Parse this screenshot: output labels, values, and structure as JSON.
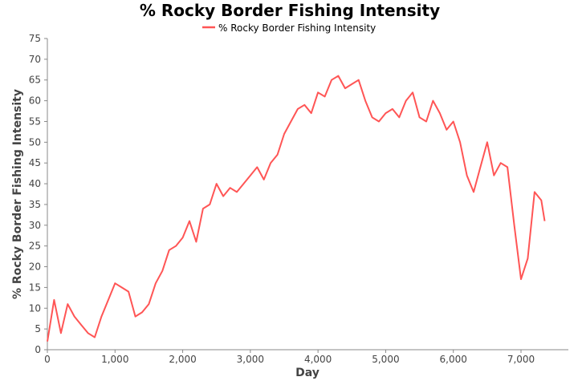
{
  "chart_data": {
    "type": "line",
    "title": "% Rocky Border Fishing Intensity",
    "xlabel": "Day",
    "ylabel": "% Rocky Border Fishing Intensity",
    "xlim": [
      0,
      7700
    ],
    "ylim": [
      0,
      75
    ],
    "x_ticks": [
      0,
      1000,
      2000,
      3000,
      4000,
      5000,
      6000,
      7000
    ],
    "x_tick_labels": [
      "0",
      "1,000",
      "2,000",
      "3,000",
      "4,000",
      "5,000",
      "6,000",
      "7,000"
    ],
    "y_ticks": [
      0,
      5,
      10,
      15,
      20,
      25,
      30,
      35,
      40,
      45,
      50,
      55,
      60,
      65,
      70,
      75
    ],
    "y_tick_labels": [
      "0",
      "5",
      "10",
      "15",
      "20",
      "25",
      "30",
      "35",
      "40",
      "45",
      "50",
      "55",
      "60",
      "65",
      "70",
      "75"
    ],
    "legend_position": "top-center",
    "grid": false,
    "series": [
      {
        "name": "% Rocky Border Fishing Intensity",
        "color": "#ff5555",
        "x": [
          0,
          100,
          200,
          300,
          400,
          500,
          600,
          700,
          800,
          900,
          1000,
          1100,
          1200,
          1300,
          1400,
          1500,
          1600,
          1700,
          1800,
          1900,
          2000,
          2100,
          2200,
          2300,
          2400,
          2500,
          2600,
          2700,
          2800,
          2900,
          3000,
          3100,
          3200,
          3300,
          3400,
          3500,
          3600,
          3700,
          3800,
          3900,
          4000,
          4100,
          4200,
          4300,
          4400,
          4500,
          4600,
          4700,
          4800,
          4900,
          5000,
          5100,
          5200,
          5300,
          5400,
          5500,
          5600,
          5700,
          5800,
          5900,
          6000,
          6100,
          6200,
          6300,
          6400,
          6500,
          6600,
          6700,
          6800,
          6900,
          7000,
          7100,
          7200,
          7300,
          7350
        ],
        "y": [
          2,
          12,
          4,
          11,
          8,
          6,
          4,
          3,
          8,
          12,
          16,
          15,
          14,
          8,
          9,
          11,
          16,
          19,
          24,
          25,
          27,
          31,
          26,
          34,
          35,
          40,
          37,
          39,
          38,
          40,
          42,
          44,
          41,
          45,
          47,
          52,
          55,
          58,
          59,
          57,
          62,
          61,
          65,
          66,
          63,
          64,
          65,
          60,
          56,
          55,
          57,
          58,
          56,
          60,
          62,
          56,
          55,
          60,
          57,
          53,
          55,
          50,
          42,
          38,
          44,
          50,
          42,
          45,
          44,
          30,
          17,
          22,
          38,
          36,
          31
        ]
      }
    ]
  }
}
